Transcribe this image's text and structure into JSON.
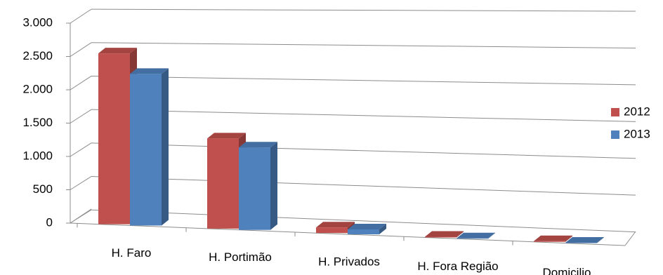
{
  "chart_data": {
    "type": "bar3d",
    "categories": [
      "H. Faro",
      "H. Portimão",
      "H. Privados",
      "H. Fora Região",
      "Domicilio"
    ],
    "series": [
      {
        "name": "2012",
        "color": "#c0504d",
        "values": [
          2550,
          1320,
          80,
          10,
          10
        ]
      },
      {
        "name": "2013",
        "color": "#4f81bd",
        "values": [
          2250,
          1200,
          70,
          5,
          5
        ]
      }
    ],
    "ylim": [
      0,
      3000
    ],
    "yticks": [
      0,
      500,
      {
        "value": 1000,
        "label": "1.000"
      },
      {
        "value": 1500,
        "label": "1.500"
      },
      {
        "value": 2000,
        "label": "2.000"
      },
      {
        "value": 2500,
        "label": "2.500"
      },
      {
        "value": 3000,
        "label": "3.000"
      }
    ],
    "grid": true,
    "legend": "right"
  }
}
